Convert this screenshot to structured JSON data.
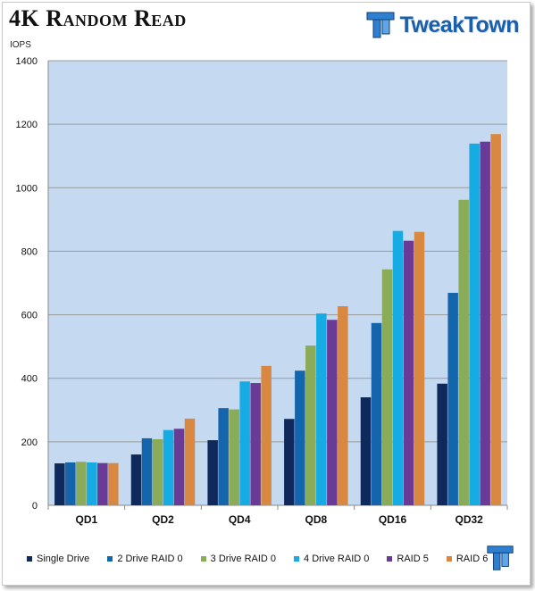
{
  "header": {
    "title": "4K Random Read",
    "brand": "TweakTown",
    "logo_icon": "tt-logo-icon"
  },
  "colors": {
    "plot_bg": "#c5d9f1",
    "grid": "#9a9a9a",
    "brand": "#1b5fa8"
  },
  "chart_data": {
    "type": "bar",
    "title": "4K Random Read",
    "ylabel": "IOPS",
    "xlabel": "",
    "ylim": [
      0,
      1400
    ],
    "yticks": [
      0,
      200,
      400,
      600,
      800,
      1000,
      1200,
      1400
    ],
    "grid": true,
    "legend_position": "bottom",
    "categories": [
      "QD1",
      "QD2",
      "QD4",
      "QD8",
      "QD16",
      "QD32"
    ],
    "series": [
      {
        "name": "Single Drive",
        "color": "#10295c",
        "values": [
          132,
          160,
          205,
          272,
          340,
          383
        ]
      },
      {
        "name": "2 Drive RAID 0",
        "color": "#1565ad",
        "values": [
          135,
          211,
          306,
          424,
          574,
          669
        ]
      },
      {
        "name": "3 Drive RAID 0",
        "color": "#8aab58",
        "values": [
          137,
          208,
          302,
          503,
          743,
          962
        ]
      },
      {
        "name": "4 Drive RAID 0",
        "color": "#16abe3",
        "values": [
          135,
          237,
          390,
          604,
          864,
          1139
        ]
      },
      {
        "name": "RAID 5",
        "color": "#6a3a97",
        "values": [
          133,
          241,
          385,
          584,
          833,
          1145
        ]
      },
      {
        "name": "RAID 6",
        "color": "#d98841",
        "values": [
          133,
          273,
          439,
          627,
          861,
          1169
        ]
      }
    ]
  }
}
